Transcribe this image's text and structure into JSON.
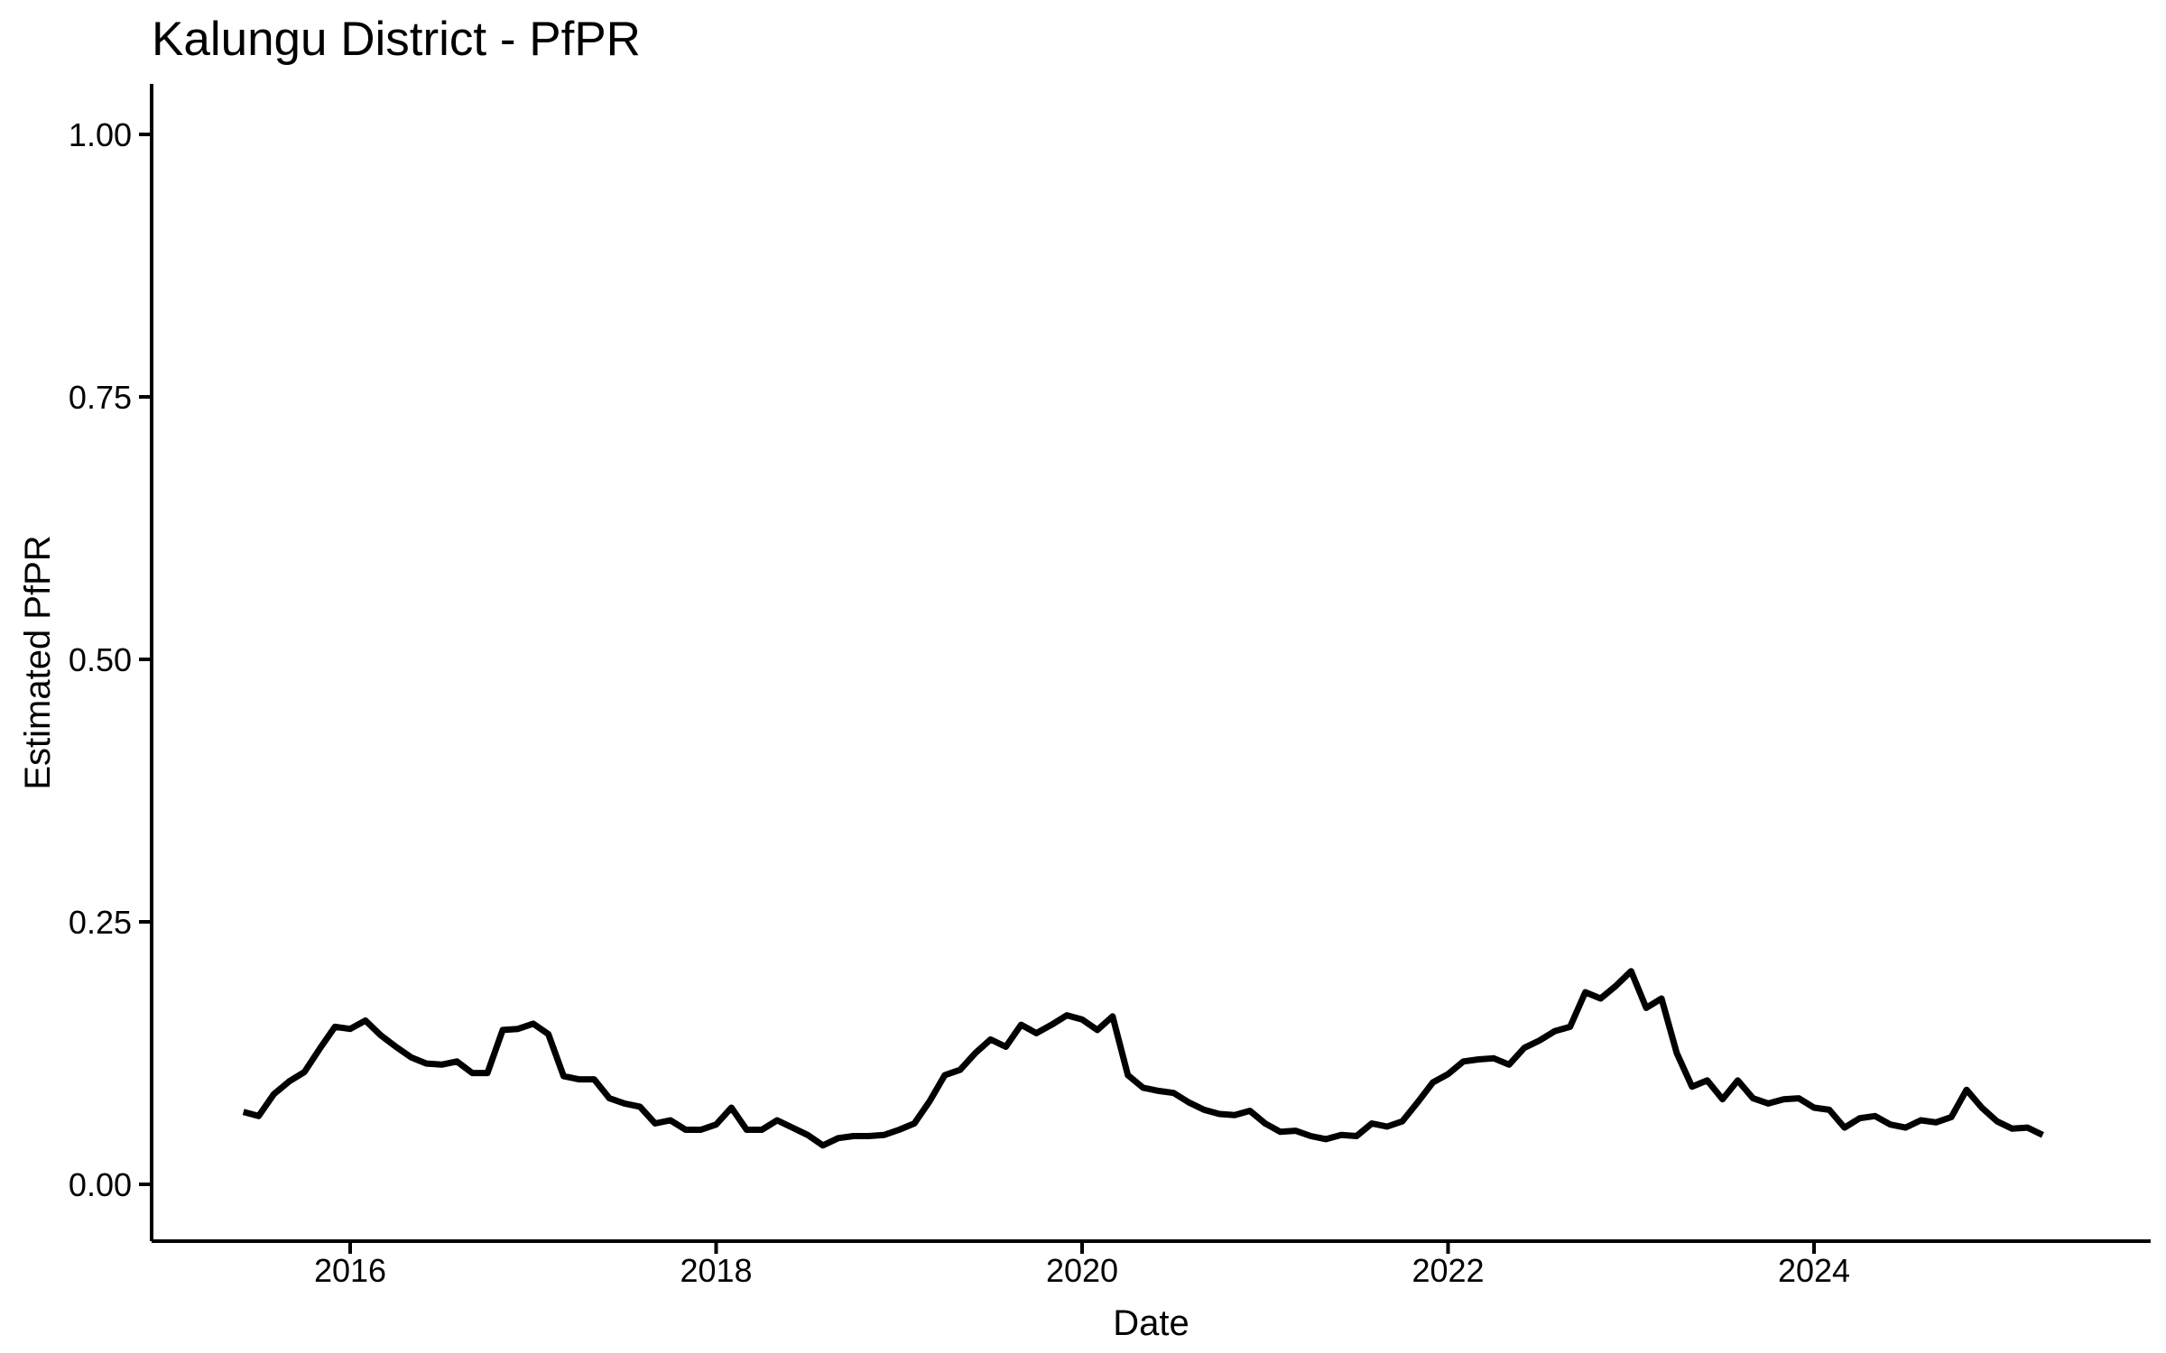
{
  "chart_data": {
    "type": "line",
    "title": "Kalungu District - PfPR",
    "xlabel": "Date",
    "ylabel": "Estimated PfPR",
    "series_name": "Estimated PfPR",
    "line_color": "#000000",
    "background_color": "#FFFFFF",
    "grid": false,
    "legend": "none",
    "ylim": [
      0.0,
      1.0
    ],
    "y_ticks": [
      0.0,
      0.25,
      0.5,
      0.75,
      1.0
    ],
    "y_tick_labels": [
      "0.00",
      "0.25",
      "0.50",
      "0.75",
      "1.00"
    ],
    "x_ticks": [
      2016,
      2018,
      2020,
      2022,
      2024
    ],
    "x_tick_labels": [
      "2016",
      "2018",
      "2020",
      "2022",
      "2024"
    ],
    "x": [
      "2015-06",
      "2015-07",
      "2015-08",
      "2015-09",
      "2015-10",
      "2015-11",
      "2015-12",
      "2016-01",
      "2016-02",
      "2016-03",
      "2016-04",
      "2016-05",
      "2016-06",
      "2016-07",
      "2016-08",
      "2016-09",
      "2016-10",
      "2016-11",
      "2016-12",
      "2017-01",
      "2017-02",
      "2017-03",
      "2017-04",
      "2017-05",
      "2017-06",
      "2017-07",
      "2017-08",
      "2017-09",
      "2017-10",
      "2017-11",
      "2017-12",
      "2018-01",
      "2018-02",
      "2018-03",
      "2018-04",
      "2018-05",
      "2018-06",
      "2018-07",
      "2018-08",
      "2018-09",
      "2018-10",
      "2018-11",
      "2018-12",
      "2019-01",
      "2019-02",
      "2019-03",
      "2019-04",
      "2019-05",
      "2019-06",
      "2019-07",
      "2019-08",
      "2019-09",
      "2019-10",
      "2019-11",
      "2019-12",
      "2020-01",
      "2020-02",
      "2020-03",
      "2020-04",
      "2020-05",
      "2020-06",
      "2020-07",
      "2020-08",
      "2020-09",
      "2020-10",
      "2020-11",
      "2020-12",
      "2021-01",
      "2021-02",
      "2021-03",
      "2021-04",
      "2021-05",
      "2021-06",
      "2021-07",
      "2021-08",
      "2021-09",
      "2021-10",
      "2021-11",
      "2021-12",
      "2022-01",
      "2022-02",
      "2022-03",
      "2022-04",
      "2022-05",
      "2022-06",
      "2022-07",
      "2022-08",
      "2022-09",
      "2022-10",
      "2022-11",
      "2022-12",
      "2023-01",
      "2023-02",
      "2023-03",
      "2023-04",
      "2023-05",
      "2023-06",
      "2023-07",
      "2023-08",
      "2023-09",
      "2023-10",
      "2023-11",
      "2023-12",
      "2024-01",
      "2024-02",
      "2024-03",
      "2024-04",
      "2024-05",
      "2024-06",
      "2024-07",
      "2024-08",
      "2024-09",
      "2024-10",
      "2024-11",
      "2024-12",
      "2025-01",
      "2025-02",
      "2025-03",
      "2025-04"
    ],
    "values": [
      0.069,
      0.065,
      0.086,
      0.098,
      0.107,
      0.129,
      0.15,
      0.148,
      0.156,
      0.142,
      0.131,
      0.121,
      0.115,
      0.114,
      0.117,
      0.106,
      0.106,
      0.147,
      0.148,
      0.153,
      0.143,
      0.103,
      0.1,
      0.1,
      0.082,
      0.077,
      0.074,
      0.058,
      0.061,
      0.052,
      0.052,
      0.057,
      0.073,
      0.052,
      0.052,
      0.061,
      0.054,
      0.047,
      0.037,
      0.044,
      0.046,
      0.046,
      0.047,
      0.052,
      0.058,
      0.079,
      0.104,
      0.109,
      0.125,
      0.138,
      0.131,
      0.152,
      0.144,
      0.152,
      0.161,
      0.157,
      0.147,
      0.16,
      0.104,
      0.092,
      0.089,
      0.087,
      0.078,
      0.071,
      0.067,
      0.066,
      0.07,
      0.058,
      0.05,
      0.051,
      0.046,
      0.043,
      0.047,
      0.046,
      0.058,
      0.055,
      0.06,
      0.078,
      0.097,
      0.105,
      0.117,
      0.119,
      0.12,
      0.114,
      0.13,
      0.137,
      0.146,
      0.15,
      0.183,
      0.177,
      0.189,
      0.203,
      0.168,
      0.177,
      0.125,
      0.093,
      0.099,
      0.081,
      0.099,
      0.082,
      0.077,
      0.081,
      0.082,
      0.073,
      0.071,
      0.054,
      0.063,
      0.065,
      0.057,
      0.054,
      0.061,
      0.059,
      0.064,
      0.09,
      0.073,
      0.06,
      0.053,
      0.054,
      0.047
    ]
  }
}
